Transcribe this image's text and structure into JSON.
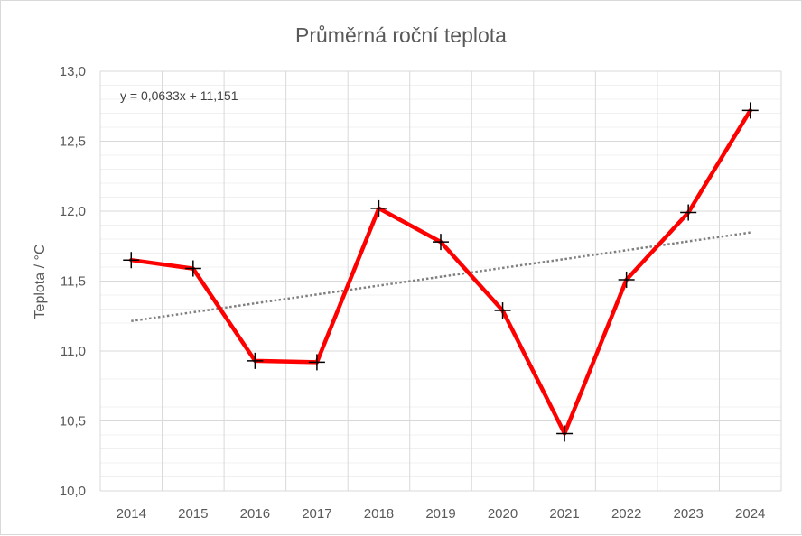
{
  "chart_data": {
    "type": "line",
    "title": "Průměrná roční teplota",
    "xlabel": "",
    "ylabel": "Teplota / °C",
    "categories": [
      "2014",
      "2015",
      "2016",
      "2017",
      "2018",
      "2019",
      "2020",
      "2021",
      "2022",
      "2023",
      "2024"
    ],
    "ylim": [
      10.0,
      13.0
    ],
    "y_tick_labels": [
      "10,0",
      "10,5",
      "11,0",
      "11,5",
      "12,0",
      "12,5",
      "13,0"
    ],
    "grid": true,
    "legend": "none",
    "series": [
      {
        "values": [
          11.65,
          11.59,
          10.93,
          10.92,
          12.02,
          11.78,
          11.29,
          10.41,
          11.51,
          11.99,
          12.72
        ],
        "color": "#ff0000",
        "marker": "plus"
      }
    ],
    "trendline": {
      "equation": "y = 0,0633x + 11,151",
      "slope": 0.0633,
      "intercept": 11.151,
      "color": "#808080",
      "style": "dotted"
    }
  }
}
